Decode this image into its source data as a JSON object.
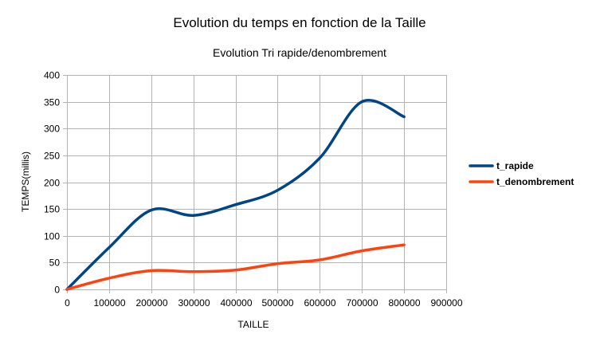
{
  "chart_data": {
    "type": "line",
    "title": "Evolution du temps en fonction de la Taille",
    "subtitle": "Evolution Tri rapide/denombrement",
    "xlabel": "TAILLE",
    "ylabel": "TEMPS(millis)",
    "xlim": [
      0,
      900000
    ],
    "ylim": [
      0,
      400
    ],
    "x_ticks": [
      "0",
      "100000",
      "200000",
      "300000",
      "400000",
      "500000",
      "600000",
      "700000",
      "800000",
      "900000"
    ],
    "y_ticks": [
      "0",
      "50",
      "100",
      "150",
      "200",
      "250",
      "300",
      "350",
      "400"
    ],
    "grid": true,
    "legend_position": "right",
    "x": [
      0,
      100000,
      200000,
      300000,
      400000,
      500000,
      600000,
      700000,
      800000
    ],
    "series": [
      {
        "name": "t_rapide",
        "color": "#004586",
        "values": [
          0,
          78,
          148,
          138,
          158,
          185,
          245,
          350,
          322
        ]
      },
      {
        "name": "t_denombrement",
        "color": "#ff420e",
        "values": [
          0,
          21,
          35,
          33,
          36,
          48,
          55,
          72,
          83
        ]
      }
    ]
  }
}
